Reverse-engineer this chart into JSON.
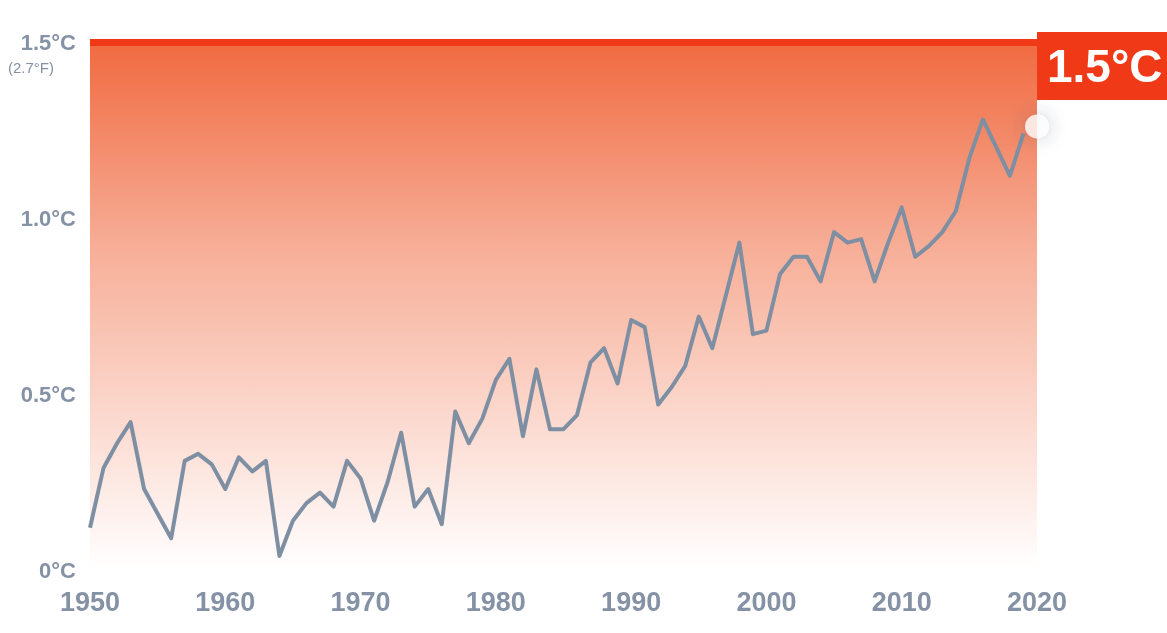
{
  "chart_data": {
    "type": "line",
    "x": [
      1950,
      1951,
      1952,
      1953,
      1954,
      1955,
      1956,
      1957,
      1958,
      1959,
      1960,
      1961,
      1962,
      1963,
      1964,
      1965,
      1966,
      1967,
      1968,
      1969,
      1970,
      1971,
      1972,
      1973,
      1974,
      1975,
      1976,
      1977,
      1978,
      1979,
      1980,
      1981,
      1982,
      1983,
      1984,
      1985,
      1986,
      1987,
      1988,
      1989,
      1990,
      1991,
      1992,
      1993,
      1994,
      1995,
      1996,
      1997,
      1998,
      1999,
      2000,
      2001,
      2002,
      2003,
      2004,
      2005,
      2006,
      2007,
      2008,
      2009,
      2010,
      2011,
      2012,
      2013,
      2014,
      2015,
      2016,
      2017,
      2018,
      2019
    ],
    "series": [
      {
        "color": "#7f8fa3",
        "values": [
          0.12,
          0.29,
          0.36,
          0.42,
          0.23,
          0.16,
          0.09,
          0.31,
          0.33,
          0.3,
          0.23,
          0.32,
          0.28,
          0.31,
          0.04,
          0.14,
          0.19,
          0.22,
          0.18,
          0.31,
          0.26,
          0.14,
          0.25,
          0.39,
          0.18,
          0.23,
          0.13,
          0.45,
          0.36,
          0.43,
          0.54,
          0.6,
          0.38,
          0.57,
          0.4,
          0.4,
          0.44,
          0.59,
          0.63,
          0.53,
          0.71,
          0.69,
          0.47,
          0.52,
          0.58,
          0.72,
          0.63,
          0.78,
          0.93,
          0.67,
          0.68,
          0.84,
          0.89,
          0.89,
          0.82,
          0.96,
          0.93,
          0.94,
          0.82,
          0.93,
          1.03,
          0.89,
          0.92,
          0.96,
          1.02,
          1.17,
          1.28,
          1.2,
          1.12,
          1.24
        ]
      },
      {
        "type": "scatter",
        "color": "#ffffff",
        "x": [
          2020
        ],
        "values": [
          1.26
        ]
      }
    ],
    "xlim": [
      1950,
      2020
    ],
    "xticks": [
      1950,
      1960,
      1970,
      1980,
      1990,
      2000,
      2010,
      2020
    ],
    "ylim": [
      0,
      1.5
    ],
    "yticks": [
      {
        "value": 0,
        "label": "0°C"
      },
      {
        "value": 0.5,
        "label": "0.5°C"
      },
      {
        "value": 1.0,
        "label": "1.0°C"
      },
      {
        "value": 1.5,
        "label": "1.5°C"
      }
    ],
    "annotations": [
      "(2.7°F)"
    ],
    "ref_lines": [
      {
        "axis": "y",
        "value": 1.5,
        "label": "1.5°C",
        "color": "#f03a17"
      }
    ],
    "bands": [
      {
        "axis": "y",
        "from": 0,
        "to": 1.5,
        "color": "#f06a40"
      }
    ],
    "grid": false
  }
}
